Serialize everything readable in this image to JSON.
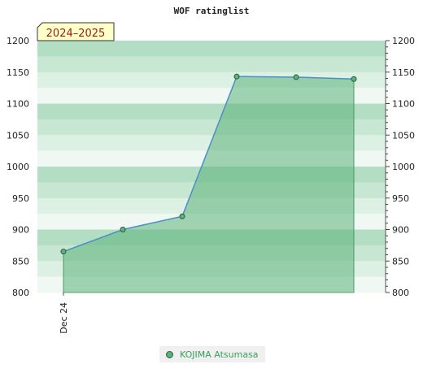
{
  "chart_data": {
    "type": "area",
    "title": "WOF ratinglist",
    "season_label": "2024–2025",
    "x_tick_labels": [
      "Dec 24"
    ],
    "series": [
      {
        "name": "KOJIMA Atsumasa",
        "values": [
          865,
          900,
          921,
          1143,
          1142,
          1139
        ]
      }
    ],
    "ylim": [
      800,
      1200
    ],
    "y_ticks": [
      800,
      850,
      900,
      950,
      1000,
      1050,
      1100,
      1150,
      1200
    ],
    "grid": "horizontal bands",
    "legend_position": "bottom-center",
    "colors": {
      "fill": "#5cb37a",
      "line": "#4a90c8",
      "marker": "#5cb37a",
      "legend_text": "#3aa05a",
      "season_box": "#ffffc8"
    }
  }
}
